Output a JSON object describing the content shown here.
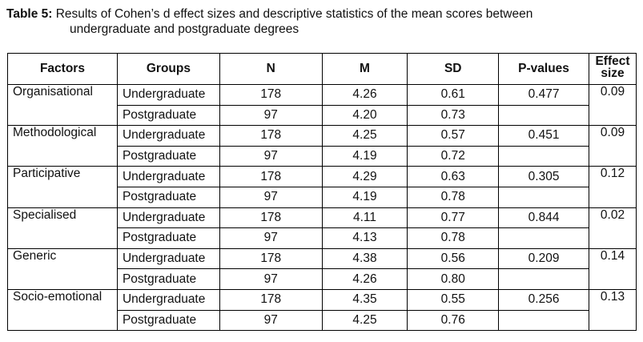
{
  "caption": {
    "label": "Table 5:",
    "text_line1": "Results of Cohen’s d effect sizes and descriptive statistics of the mean scores between",
    "text_line2": "undergraduate and postgraduate degrees"
  },
  "table": {
    "headers": {
      "factors": "Factors",
      "groups": "Groups",
      "n": "N",
      "m": "M",
      "sd": "SD",
      "p": "P-values",
      "effect_line1": "Effect",
      "effect_line2": "size"
    },
    "rows": [
      {
        "factor": "Organisational",
        "p": "0.477",
        "effect": "0.09",
        "g1": {
          "group": "Undergraduate",
          "n": "178",
          "m": "4.26",
          "sd": "0.61"
        },
        "g2": {
          "group": "Postgraduate",
          "n": "97",
          "m": "4.20",
          "sd": "0.73"
        }
      },
      {
        "factor": "Methodological",
        "p": "0.451",
        "effect": "0.09",
        "g1": {
          "group": "Undergraduate",
          "n": "178",
          "m": "4.25",
          "sd": "0.57"
        },
        "g2": {
          "group": "Postgraduate",
          "n": "97",
          "m": "4.19",
          "sd": "0.72"
        }
      },
      {
        "factor": "Participative",
        "p": "0.305",
        "effect": "0.12",
        "g1": {
          "group": "Undergraduate",
          "n": "178",
          "m": "4.29",
          "sd": "0.63"
        },
        "g2": {
          "group": "Postgraduate",
          "n": "97",
          "m": "4.19",
          "sd": "0.78"
        }
      },
      {
        "factor": "Specialised",
        "p": "0.844",
        "effect": "0.02",
        "g1": {
          "group": "Undergraduate",
          "n": "178",
          "m": "4.11",
          "sd": "0.77"
        },
        "g2": {
          "group": "Postgraduate",
          "n": "97",
          "m": "4.13",
          "sd": "0.78"
        }
      },
      {
        "factor": "Generic",
        "p": "0.209",
        "effect": "0.14",
        "g1": {
          "group": "Undergraduate",
          "n": "178",
          "m": "4.38",
          "sd": "0.56"
        },
        "g2": {
          "group": "Postgraduate",
          "n": "97",
          "m": "4.26",
          "sd": "0.80"
        }
      },
      {
        "factor": "Socio-emotional",
        "p": "0.256",
        "effect": "0.13",
        "g1": {
          "group": "Undergraduate",
          "n": "178",
          "m": "4.35",
          "sd": "0.55"
        },
        "g2": {
          "group": "Postgraduate",
          "n": "97",
          "m": "4.25",
          "sd": "0.76"
        }
      }
    ]
  }
}
